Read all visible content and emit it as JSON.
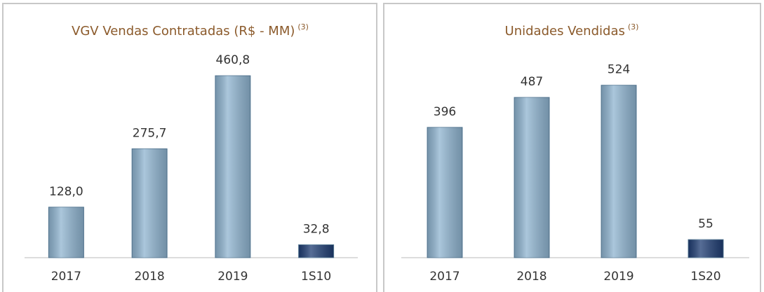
{
  "chart_data": [
    {
      "type": "bar",
      "title": "VGV Vendas Contratadas (R$ - MM)",
      "title_note": "(3)",
      "categories": [
        "2017",
        "2018",
        "2019",
        "1S10"
      ],
      "values": [
        128.0,
        275.7,
        460.8,
        32.8
      ],
      "value_labels": [
        "128,0",
        "275,7",
        "460,8",
        "32,8"
      ],
      "colors": [
        "#8fb4d0",
        "#8fb4d0",
        "#8fb4d0",
        "#1f3d73"
      ],
      "ylim": [
        0,
        500
      ]
    },
    {
      "type": "bar",
      "title": "Unidades Vendidas",
      "title_note": "(3)",
      "categories": [
        "2017",
        "2018",
        "2019",
        "1S20"
      ],
      "values": [
        396,
        487,
        524,
        55
      ],
      "colors": [
        "#8fb4d0",
        "#8fb4d0",
        "#8fb4d0",
        "#1f3d73"
      ],
      "ylim": [
        0,
        600
      ]
    }
  ]
}
